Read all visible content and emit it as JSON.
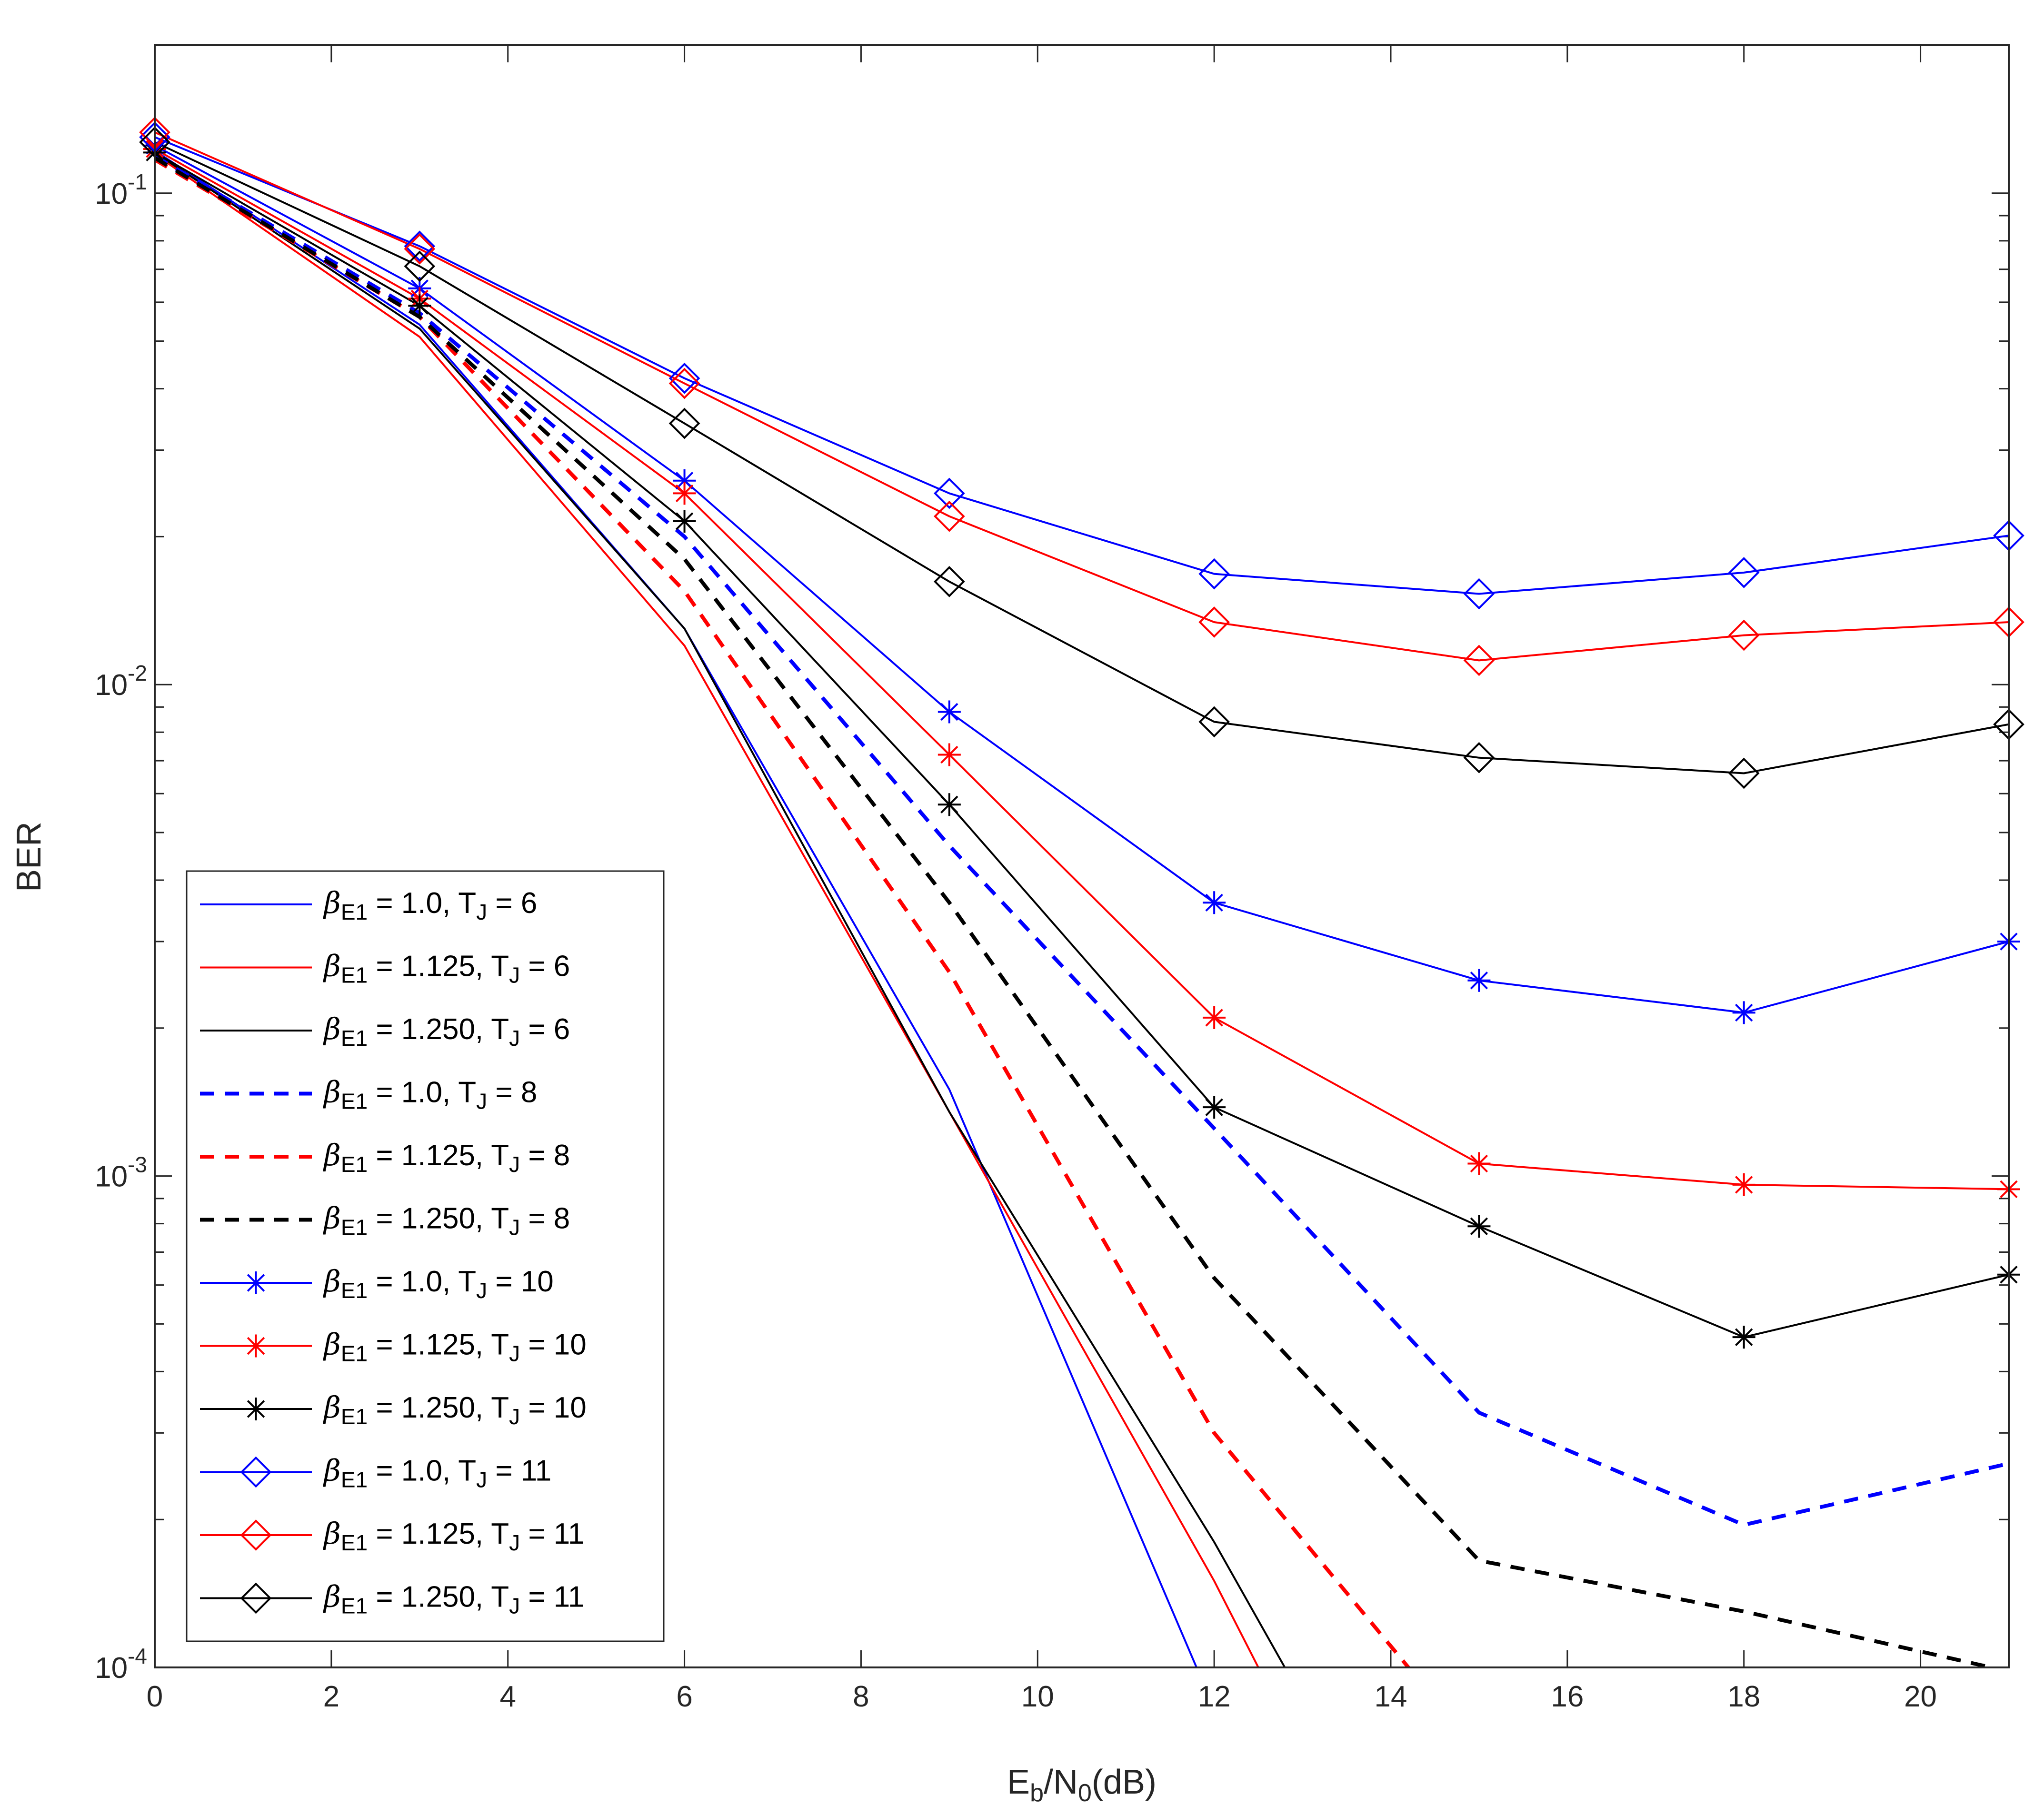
{
  "chart_data": {
    "type": "line",
    "title": "",
    "xlabel": {
      "base": "E",
      "sub1": "b",
      "mid": "/N",
      "sub2": "0",
      "tail": "(dB)"
    },
    "ylabel": "BER",
    "xlim": [
      0,
      21
    ],
    "ylim": [
      0.0001,
      0.2
    ],
    "yscale": "log",
    "xticks": [
      0,
      2,
      4,
      6,
      8,
      10,
      12,
      14,
      16,
      18,
      20
    ],
    "yticks": [
      {
        "value": 0.1,
        "base": "10",
        "exp": "-1"
      },
      {
        "value": 0.01,
        "base": "10",
        "exp": "-2"
      },
      {
        "value": 0.001,
        "base": "10",
        "exp": "-3"
      },
      {
        "value": 0.0001,
        "base": "10",
        "exp": "-4"
      }
    ],
    "legend_location": "lower-left",
    "x": [
      0,
      3,
      6,
      9,
      12,
      15,
      18,
      21
    ],
    "series": [
      {
        "name": "β_E1 = 1.0, T_J = 6",
        "beta": "1.0",
        "tj": "6",
        "color": "#0000ff",
        "dash": "solid",
        "marker": "none",
        "x": [
          0,
          3,
          6,
          9,
          11.8
        ],
        "values": [
          0.122,
          0.054,
          0.013,
          0.0015,
          0.0001
        ]
      },
      {
        "name": "β_E1 = 1.125, T_J = 6",
        "beta": "1.125",
        "tj": "6",
        "color": "#ff0000",
        "dash": "solid",
        "marker": "none",
        "x": [
          0,
          3,
          6,
          9,
          12,
          12.5
        ],
        "values": [
          0.12,
          0.051,
          0.012,
          0.00135,
          0.00015,
          0.0001
        ]
      },
      {
        "name": "β_E1 = 1.250, T_J = 6",
        "beta": "1.250",
        "tj": "6",
        "color": "#000000",
        "dash": "solid",
        "marker": "none",
        "x": [
          0,
          3,
          6,
          9,
          12,
          12.8
        ],
        "values": [
          0.121,
          0.053,
          0.013,
          0.00135,
          0.00018,
          0.0001
        ]
      },
      {
        "name": "β_E1 = 1.0, T_J = 8",
        "beta": "1.0",
        "tj": "8",
        "color": "#0000ff",
        "dash": "dashed",
        "marker": "none",
        "x": [
          0,
          3,
          6,
          9,
          12,
          15,
          18,
          21
        ],
        "values": [
          0.119,
          0.057,
          0.02,
          0.0047,
          0.00125,
          0.00033,
          0.000195,
          0.00026
        ]
      },
      {
        "name": "β_E1 = 1.125, T_J = 8",
        "beta": "1.125",
        "tj": "8",
        "color": "#ff0000",
        "dash": "dashed",
        "marker": "none",
        "x": [
          0,
          3,
          6,
          9,
          12,
          14.2
        ],
        "values": [
          0.117,
          0.056,
          0.0155,
          0.0026,
          0.0003,
          0.0001
        ]
      },
      {
        "name": "β_E1 = 1.250, T_J = 8",
        "beta": "1.250",
        "tj": "8",
        "color": "#000000",
        "dash": "dashed",
        "marker": "none",
        "x": [
          0,
          3,
          6,
          9,
          12,
          15,
          18,
          20.8
        ],
        "values": [
          0.118,
          0.056,
          0.018,
          0.0036,
          0.00062,
          0.000165,
          0.00013,
          0.0001
        ]
      },
      {
        "name": "β_E1 = 1.0, T_J = 10",
        "beta": "1.0",
        "tj": "10",
        "color": "#0000ff",
        "dash": "solid",
        "marker": "star",
        "x": [
          0,
          3,
          6,
          9,
          12,
          15,
          18,
          21
        ],
        "values": [
          0.125,
          0.064,
          0.026,
          0.0088,
          0.0036,
          0.0025,
          0.00215,
          0.003
        ]
      },
      {
        "name": "β_E1 = 1.125, T_J = 10",
        "beta": "1.125",
        "tj": "10",
        "color": "#ff0000",
        "dash": "solid",
        "marker": "star",
        "x": [
          0,
          3,
          6,
          9,
          12,
          15,
          18,
          21
        ],
        "values": [
          0.123,
          0.061,
          0.0245,
          0.0072,
          0.0021,
          0.00106,
          0.00096,
          0.00094
        ]
      },
      {
        "name": "β_E1 = 1.250, T_J = 10",
        "beta": "1.250",
        "tj": "10",
        "color": "#000000",
        "dash": "solid",
        "marker": "star",
        "x": [
          0,
          3,
          6,
          9,
          12,
          15,
          18,
          21
        ],
        "values": [
          0.121,
          0.059,
          0.0215,
          0.0057,
          0.00138,
          0.00079,
          0.00047,
          0.00063
        ]
      },
      {
        "name": "β_E1 = 1.0, T_J = 11",
        "beta": "1.0",
        "tj": "11",
        "color": "#0000ff",
        "dash": "solid",
        "marker": "diamond",
        "x": [
          0,
          3,
          6,
          9,
          12,
          15,
          18,
          21
        ],
        "values": [
          0.13,
          0.078,
          0.042,
          0.0245,
          0.0168,
          0.0153,
          0.0169,
          0.0201
        ]
      },
      {
        "name": "β_E1 = 1.125, T_J = 11",
        "beta": "1.125",
        "tj": "11",
        "color": "#ff0000",
        "dash": "solid",
        "marker": "diamond",
        "x": [
          0,
          3,
          6,
          9,
          12,
          15,
          18,
          21
        ],
        "values": [
          0.133,
          0.077,
          0.041,
          0.022,
          0.0134,
          0.0112,
          0.0126,
          0.0134
        ]
      },
      {
        "name": "β_E1 = 1.250, T_J = 11",
        "beta": "1.250",
        "tj": "11",
        "color": "#000000",
        "dash": "solid",
        "marker": "diamond",
        "x": [
          0,
          3,
          6,
          9,
          12,
          15,
          18,
          21
        ],
        "values": [
          0.127,
          0.071,
          0.034,
          0.0162,
          0.0084,
          0.0071,
          0.0066,
          0.0083
        ]
      }
    ]
  }
}
